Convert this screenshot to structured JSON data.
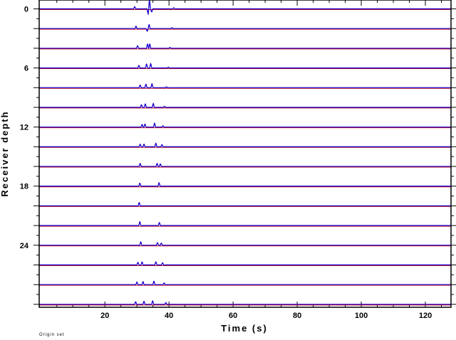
{
  "chart_data": {
    "type": "line",
    "title": "",
    "xlabel": "Time (s)",
    "ylabel": "Receiver depth",
    "xlim": [
      -0.5,
      128
    ],
    "ylim": [
      0,
      30.2
    ],
    "x_ticks": [
      20,
      40,
      60,
      80,
      100,
      120
    ],
    "y_ticks": [
      0,
      6,
      12,
      18,
      24
    ],
    "traces": [
      {
        "depth": 0,
        "arrivals": [
          {
            "t": 29.3,
            "a": 0.25
          },
          {
            "t": 33.5,
            "a": -0.55
          },
          {
            "t": 33.9,
            "a": 1.0
          },
          {
            "t": 34.6,
            "a": -0.35
          },
          {
            "t": 41.5,
            "a": 0.12
          }
        ]
      },
      {
        "depth": 2,
        "arrivals": [
          {
            "t": 29.7,
            "a": 0.28
          },
          {
            "t": 33.2,
            "a": -0.3
          },
          {
            "t": 33.8,
            "a": 0.45
          },
          {
            "t": 40.9,
            "a": 0.1
          }
        ]
      },
      {
        "depth": 4,
        "arrivals": [
          {
            "t": 30.2,
            "a": 0.3
          },
          {
            "t": 33.3,
            "a": 0.5
          },
          {
            "t": 34.0,
            "a": 0.5
          },
          {
            "t": 40.3,
            "a": 0.1
          }
        ]
      },
      {
        "depth": 6,
        "arrivals": [
          {
            "t": 30.6,
            "a": 0.3
          },
          {
            "t": 33.0,
            "a": 0.45
          },
          {
            "t": 34.3,
            "a": 0.5
          },
          {
            "t": 39.8,
            "a": 0.1
          }
        ]
      },
      {
        "depth": 8,
        "arrivals": [
          {
            "t": 31.0,
            "a": 0.3
          },
          {
            "t": 32.8,
            "a": 0.4
          },
          {
            "t": 34.7,
            "a": 0.45
          },
          {
            "t": 39.2,
            "a": 0.1
          }
        ]
      },
      {
        "depth": 10,
        "arrivals": [
          {
            "t": 31.4,
            "a": 0.3
          },
          {
            "t": 32.6,
            "a": 0.4
          },
          {
            "t": 35.1,
            "a": 0.45
          },
          {
            "t": 38.6,
            "a": 0.12
          }
        ]
      },
      {
        "depth": 12,
        "arrivals": [
          {
            "t": 31.6,
            "a": 0.3
          },
          {
            "t": 32.5,
            "a": 0.35
          },
          {
            "t": 35.5,
            "a": 0.45
          },
          {
            "t": 38.1,
            "a": 0.15
          }
        ]
      },
      {
        "depth": 14,
        "arrivals": [
          {
            "t": 31.0,
            "a": 0.3
          },
          {
            "t": 32.2,
            "a": 0.3
          },
          {
            "t": 35.9,
            "a": 0.4
          },
          {
            "t": 37.8,
            "a": 0.25
          }
        ]
      },
      {
        "depth": 16,
        "arrivals": [
          {
            "t": 31.0,
            "a": 0.35
          },
          {
            "t": 36.3,
            "a": 0.35
          },
          {
            "t": 37.3,
            "a": 0.3
          }
        ]
      },
      {
        "depth": 18,
        "arrivals": [
          {
            "t": 30.9,
            "a": 0.35
          },
          {
            "t": 36.9,
            "a": 0.4
          }
        ]
      },
      {
        "depth": 20,
        "arrivals": [
          {
            "t": 30.7,
            "a": 0.38
          }
        ]
      },
      {
        "depth": 22,
        "arrivals": [
          {
            "t": 30.9,
            "a": 0.45
          },
          {
            "t": 37.0,
            "a": 0.35
          }
        ]
      },
      {
        "depth": 24,
        "arrivals": [
          {
            "t": 31.2,
            "a": 0.4
          },
          {
            "t": 36.4,
            "a": 0.3
          },
          {
            "t": 37.6,
            "a": 0.25
          }
        ]
      },
      {
        "depth": 26,
        "arrivals": [
          {
            "t": 30.3,
            "a": 0.3
          },
          {
            "t": 31.6,
            "a": 0.35
          },
          {
            "t": 35.9,
            "a": 0.35
          },
          {
            "t": 38.0,
            "a": 0.25
          }
        ]
      },
      {
        "depth": 28,
        "arrivals": [
          {
            "t": 30.0,
            "a": 0.3
          },
          {
            "t": 31.9,
            "a": 0.35
          },
          {
            "t": 35.3,
            "a": 0.4
          },
          {
            "t": 38.5,
            "a": 0.2
          }
        ]
      },
      {
        "depth": 30,
        "arrivals": [
          {
            "t": 29.6,
            "a": 0.3
          },
          {
            "t": 32.2,
            "a": 0.35
          },
          {
            "t": 34.9,
            "a": 0.4
          },
          {
            "t": 39.0,
            "a": 0.2
          }
        ]
      }
    ],
    "colors": {
      "trace": "#1a00cc",
      "baseline": "#cc0000",
      "axis": "#000000"
    }
  },
  "footer_note": "Origin set"
}
